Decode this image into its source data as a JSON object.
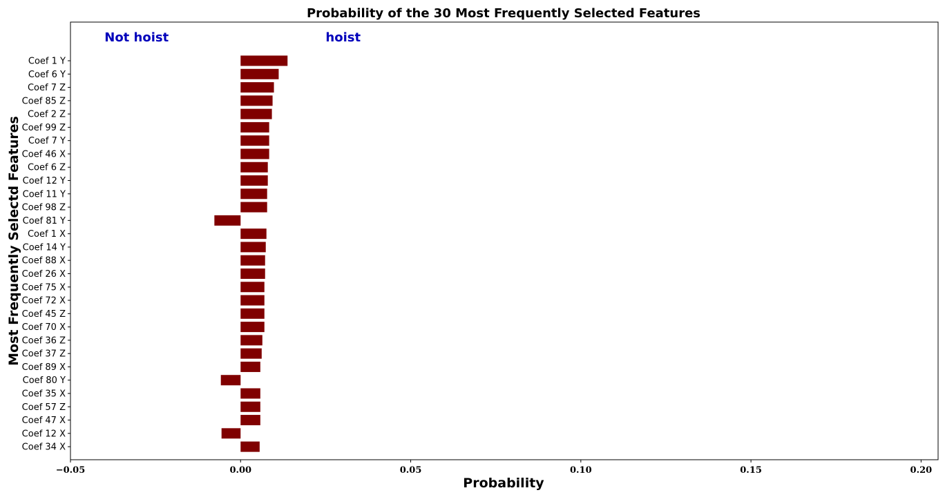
{
  "chart_data": {
    "type": "bar",
    "orientation": "horizontal",
    "title": "Probability of the 30 Most Frequently Selected Features",
    "xlabel": "Probability",
    "ylabel": "Most Frequently Selectd Features",
    "xlim": [
      -0.05,
      0.205
    ],
    "xticks": [
      -0.05,
      0.0,
      0.05,
      0.1,
      0.15,
      0.2
    ],
    "xtick_labels": [
      "−0.05",
      "0.00",
      "0.05",
      "0.10",
      "0.15",
      "0.20"
    ],
    "bar_color": "#800000",
    "annotation_color": "#0000bb",
    "grid": false,
    "annotations": [
      {
        "text": "Not hoist",
        "x": -0.04
      },
      {
        "text": "hoist",
        "x": 0.025
      }
    ],
    "categories": [
      "Coef 1 Y",
      "Coef 6 Y",
      "Coef 7 Z",
      "Coef 85 Z",
      "Coef 2 Z",
      "Coef 99 Z",
      "Coef 7 Y",
      "Coef 46 X",
      "Coef 6 Z",
      "Coef 12 Y",
      "Coef 11 Y",
      "Coef 98 Z",
      "Coef 81 Y",
      "Coef 1 X",
      "Coef 14 Y",
      "Coef 88 X",
      "Coef 26 X",
      "Coef 75 X",
      "Coef 72 X",
      "Coef 45 Z",
      "Coef 70 X",
      "Coef 36 Z",
      "Coef 37 Z",
      "Coef 89 X",
      "Coef 80 Y",
      "Coef 35 X",
      "Coef 57 Z",
      "Coef 47 X",
      "Coef 12 X",
      "Coef 34 X"
    ],
    "values": [
      0.0138,
      0.0112,
      0.0098,
      0.0094,
      0.0092,
      0.0084,
      0.0084,
      0.0084,
      0.008,
      0.008,
      0.0078,
      0.0078,
      -0.0077,
      0.0076,
      0.0074,
      0.0072,
      0.0072,
      0.007,
      0.007,
      0.007,
      0.007,
      0.0064,
      0.0062,
      0.0058,
      -0.0058,
      0.0058,
      0.0058,
      0.0058,
      -0.0056,
      0.0056
    ]
  }
}
